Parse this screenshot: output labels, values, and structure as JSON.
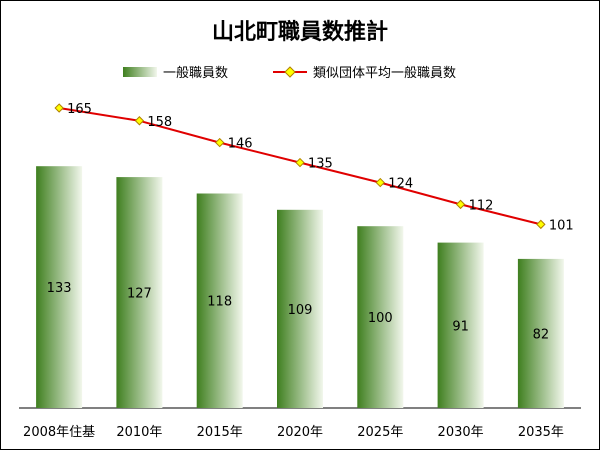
{
  "chart_data": {
    "type": "bar",
    "title": "山北町職員数推計",
    "categories": [
      "2008年住基",
      "2010年",
      "2015年",
      "2020年",
      "2025年",
      "2030年",
      "2035年"
    ],
    "series": [
      {
        "name": "一般職員数",
        "type": "bar",
        "values": [
          133,
          127,
          118,
          109,
          100,
          91,
          82
        ]
      },
      {
        "name": "類似団体平均一般職員数",
        "type": "line",
        "values": [
          165,
          158,
          146,
          135,
          124,
          112,
          101
        ]
      }
    ],
    "ylim": [
      0,
      200
    ],
    "xlabel": "",
    "ylabel": "",
    "grid": false,
    "legend": "top",
    "colors": {
      "bar_dark": "#3f7f1f",
      "bar_light": "#f2f7ec",
      "line": "#e00000",
      "marker": "#ffff00",
      "marker_stroke": "#b08000"
    }
  }
}
